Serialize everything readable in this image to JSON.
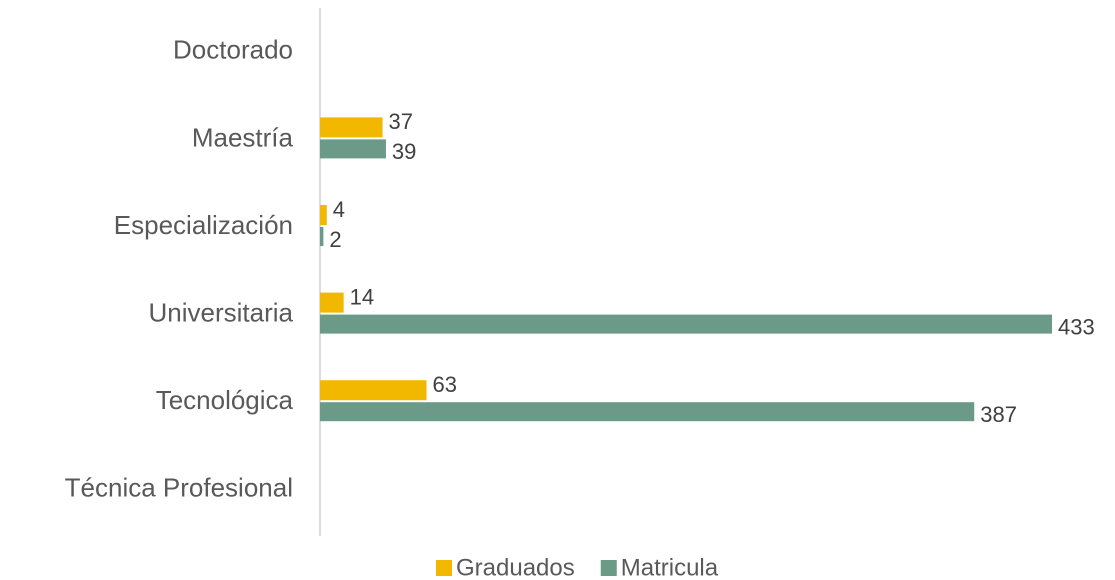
{
  "chart_data": {
    "type": "hbar",
    "categories": [
      "Doctorado",
      "Maestría",
      "Especialización",
      "Universitaria",
      "Tecnológica",
      "Técnica Profesional"
    ],
    "series": [
      {
        "name": "Graduados",
        "color": "#f2b800",
        "values": [
          null,
          37,
          4,
          14,
          63,
          null
        ]
      },
      {
        "name": "Matricula",
        "color": "#6b9a88",
        "values": [
          null,
          39,
          2,
          433,
          387,
          null
        ]
      }
    ],
    "xlim": [
      0,
      433
    ],
    "legend": "bottom"
  }
}
